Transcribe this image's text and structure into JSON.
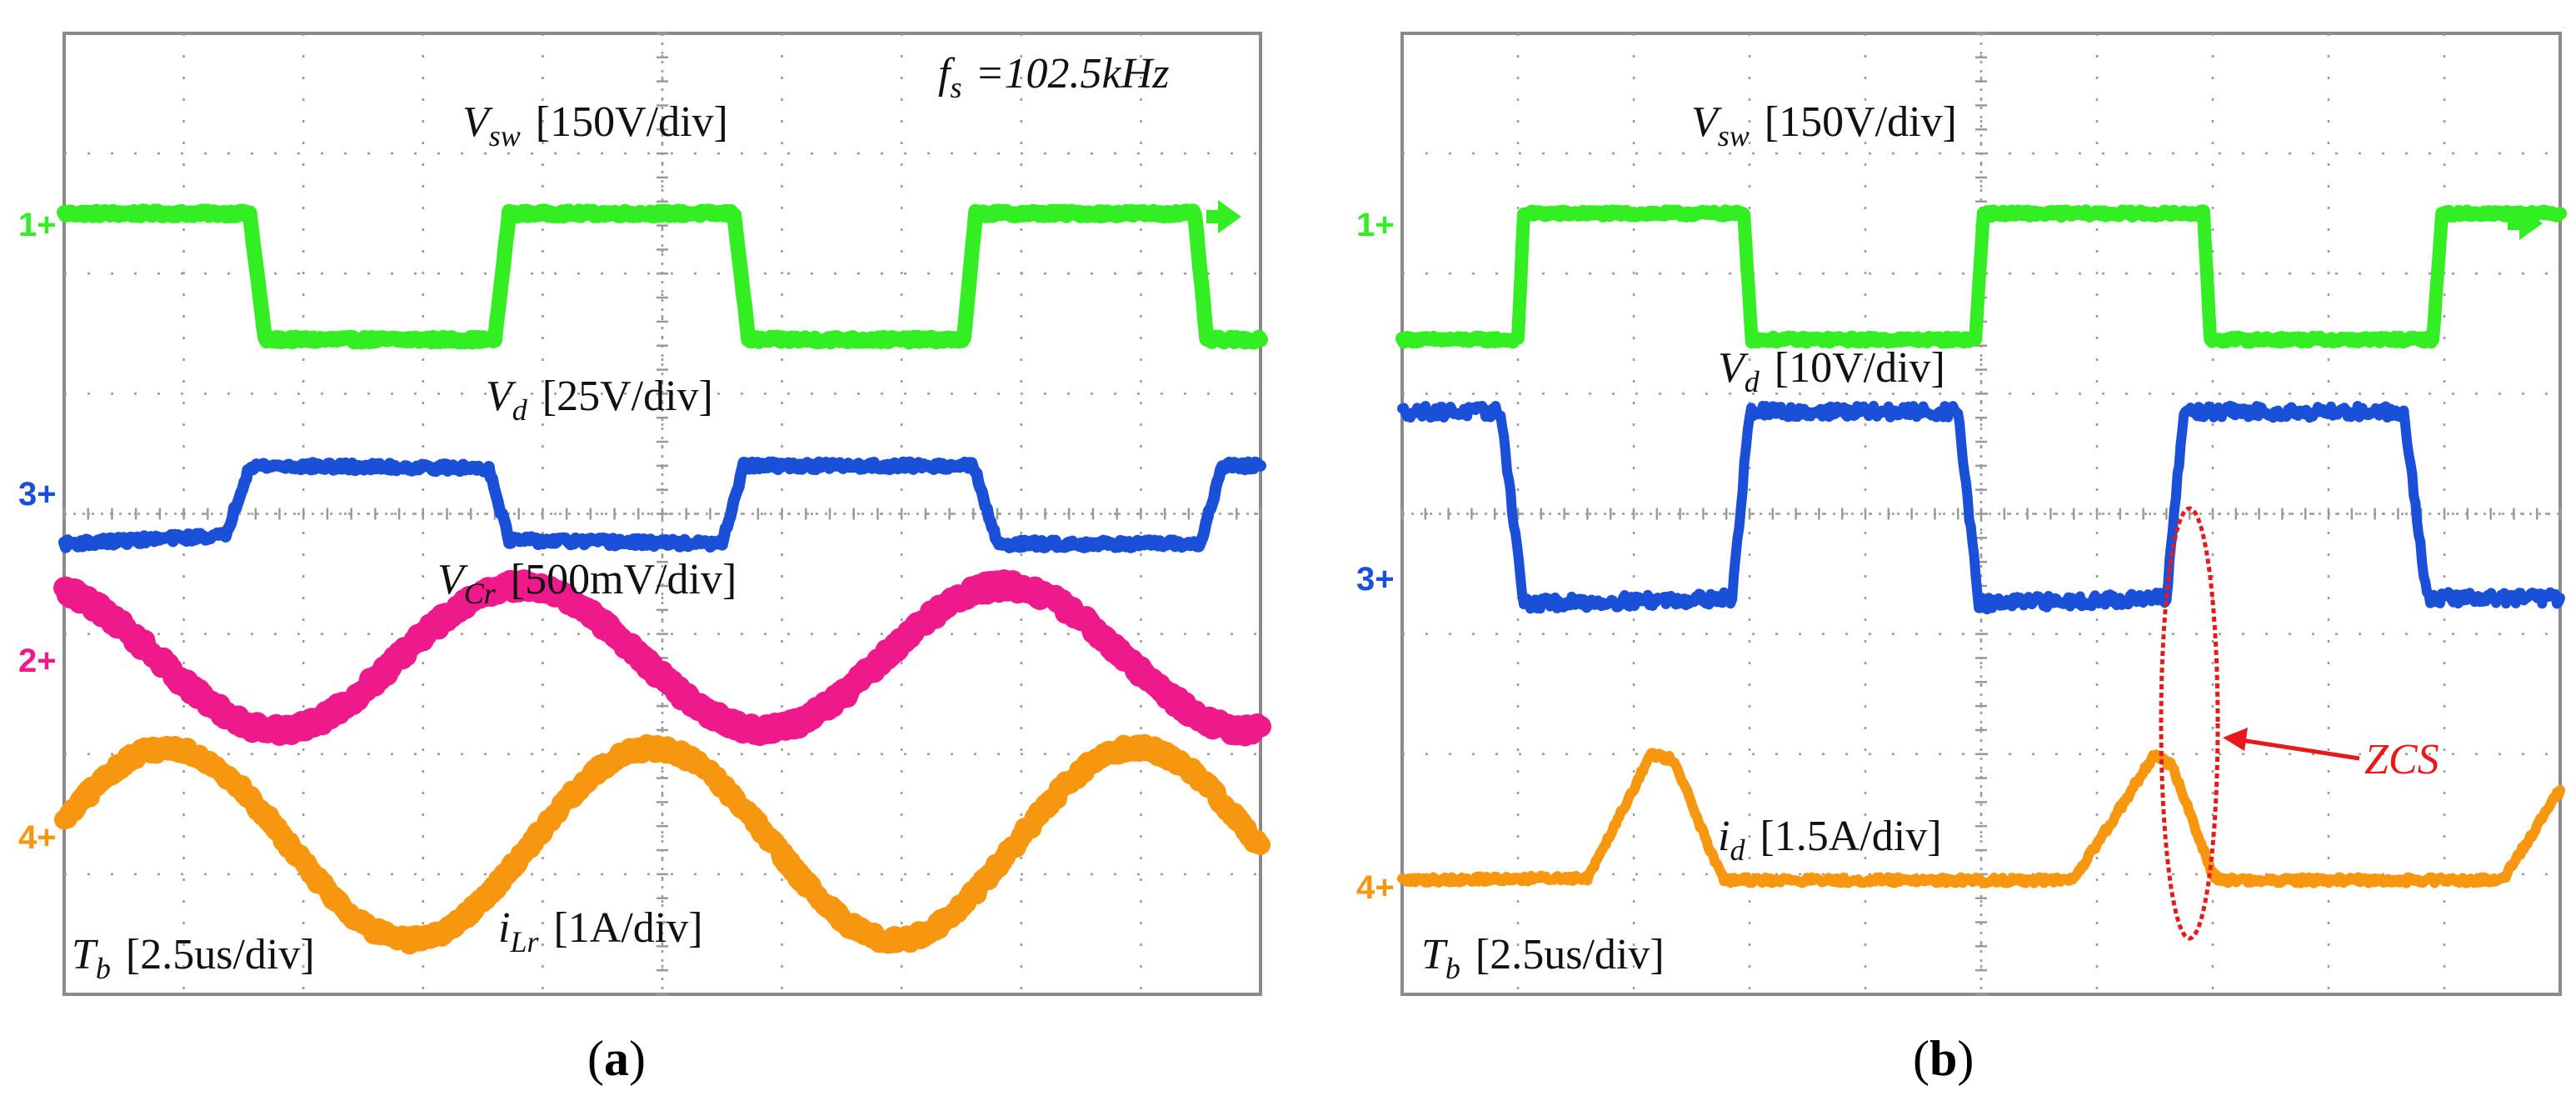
{
  "colors": {
    "ch1": "#33ee22",
    "ch3": "#1a4fd8",
    "ch2": "#ee1a8c",
    "ch4": "#f7960f",
    "zcs": "#e8191b",
    "grid": "#9a9a9a",
    "frame": "#8a8a8a"
  },
  "chart_data": [
    {
      "type": "line",
      "panel": "a",
      "caption_letter": "a",
      "annotation": {
        "prefix": "f",
        "sub": "s",
        "text": "=102.5kHz"
      },
      "grid": {
        "xdiv": 10,
        "ydiv": 8
      },
      "ylim": [
        0,
        8
      ],
      "xlabel": {
        "prefix": "T",
        "sub": "b",
        "scale": "[2.5us/div]"
      },
      "series": [
        {
          "name": "Vsw",
          "channel_marker": "1",
          "channel": "ch1",
          "label": {
            "prefix": "V",
            "sub": "sw",
            "scale": "[150V/div]"
          },
          "kind": "square",
          "baseline": 6.43,
          "low": 5.45,
          "high": 6.5,
          "noise": 0.02,
          "width": 18,
          "points": [
            [
              0,
              6.5
            ],
            [
              1.55,
              6.5
            ],
            [
              1.68,
              5.45
            ],
            [
              3.6,
              5.45
            ],
            [
              3.72,
              6.5
            ],
            [
              5.6,
              6.5
            ],
            [
              5.72,
              5.45
            ],
            [
              7.52,
              5.45
            ],
            [
              7.62,
              6.5
            ],
            [
              9.45,
              6.5
            ],
            [
              9.55,
              5.45
            ],
            [
              10,
              5.45
            ]
          ]
        },
        {
          "name": "Vd",
          "channel_marker": "3",
          "channel": "ch3",
          "label": {
            "prefix": "V",
            "sub": "d",
            "scale": "[25V/div]"
          },
          "kind": "square",
          "baseline": 3.75,
          "low": 3.75,
          "high": 4.4,
          "noise": 0.03,
          "width": 14,
          "points": [
            [
              0,
              3.75
            ],
            [
              1.35,
              3.82
            ],
            [
              1.55,
              4.4
            ],
            [
              3.55,
              4.38
            ],
            [
              3.72,
              3.78
            ],
            [
              5.5,
              3.75
            ],
            [
              5.68,
              4.4
            ],
            [
              7.6,
              4.4
            ],
            [
              7.8,
              3.75
            ],
            [
              9.5,
              3.75
            ],
            [
              9.68,
              4.4
            ],
            [
              10,
              4.4
            ]
          ]
        },
        {
          "name": "VCr",
          "channel_marker": "2",
          "channel": "ch2",
          "label": {
            "prefix": "V",
            "sub": "Cr",
            "scale": "[500mV/div]"
          },
          "kind": "sine",
          "baseline": 2.55,
          "center": 2.8,
          "amplitude": 0.6,
          "period": 4.05,
          "phase": -1.25,
          "noise": 0.05,
          "width": 26
        },
        {
          "name": "iLr",
          "channel_marker": "4",
          "channel": "ch4",
          "label": {
            "prefix": "i",
            "sub": "Lr",
            "scale": "[1A/div]"
          },
          "kind": "sine",
          "baseline": 0.95,
          "center": 1.25,
          "amplitude": 0.8,
          "period": 4.05,
          "phase": -0.15,
          "noise": 0.04,
          "width": 24
        }
      ]
    },
    {
      "type": "line",
      "panel": "b",
      "caption_letter": "b",
      "grid": {
        "xdiv": 10,
        "ydiv": 8
      },
      "ylim": [
        0,
        8
      ],
      "xlabel": {
        "prefix": "T",
        "sub": "b",
        "scale": "[2.5us/div]"
      },
      "zcs_label": "ZCS",
      "series": [
        {
          "name": "Vsw",
          "channel_marker": "1",
          "channel": "ch1",
          "label": {
            "prefix": "V",
            "sub": "sw",
            "scale": "[150V/div]"
          },
          "kind": "square",
          "baseline": 6.43,
          "low": 5.45,
          "high": 6.5,
          "noise": 0.02,
          "width": 16,
          "points": [
            [
              0,
              5.45
            ],
            [
              1.0,
              5.45
            ],
            [
              1.05,
              6.5
            ],
            [
              2.95,
              6.5
            ],
            [
              3.02,
              5.45
            ],
            [
              4.95,
              5.45
            ],
            [
              5.02,
              6.5
            ],
            [
              6.92,
              6.5
            ],
            [
              6.98,
              5.45
            ],
            [
              8.9,
              5.45
            ],
            [
              8.98,
              6.5
            ],
            [
              10,
              6.5
            ]
          ]
        },
        {
          "name": "Vd",
          "channel_marker": "3",
          "channel": "ch3",
          "label": {
            "prefix": "V",
            "sub": "d",
            "scale": "[10V/div]"
          },
          "kind": "square",
          "baseline": 3.3,
          "low": 3.25,
          "high": 4.85,
          "noise": 0.05,
          "width": 12,
          "points": [
            [
              0,
              4.85
            ],
            [
              0.85,
              4.85
            ],
            [
              1.05,
              3.25
            ],
            [
              2.85,
              3.3
            ],
            [
              3.0,
              4.85
            ],
            [
              4.8,
              4.85
            ],
            [
              4.98,
              3.25
            ],
            [
              6.6,
              3.3
            ],
            [
              6.75,
              4.85
            ],
            [
              8.65,
              4.85
            ],
            [
              8.85,
              3.3
            ],
            [
              10,
              3.3
            ]
          ]
        },
        {
          "name": "id",
          "channel_marker": "4",
          "channel": "ch4",
          "label": {
            "prefix": "i",
            "sub": "d",
            "scale": "[1.5A/div]"
          },
          "kind": "square",
          "baseline": 0.95,
          "low": 0.95,
          "high": 2.0,
          "noise": 0.025,
          "width": 12,
          "points": [
            [
              0,
              0.95
            ],
            [
              1.6,
              0.97
            ],
            [
              2.15,
              2.0
            ],
            [
              2.35,
              1.95
            ],
            [
              2.7,
              1.1
            ],
            [
              2.78,
              0.95
            ],
            [
              5.8,
              0.95
            ],
            [
              6.3,
              1.7
            ],
            [
              6.5,
              2.0
            ],
            [
              6.65,
              1.9
            ],
            [
              7.0,
              1.0
            ],
            [
              7.06,
              0.95
            ],
            [
              9.5,
              0.95
            ],
            [
              10,
              1.7
            ]
          ]
        }
      ]
    }
  ]
}
